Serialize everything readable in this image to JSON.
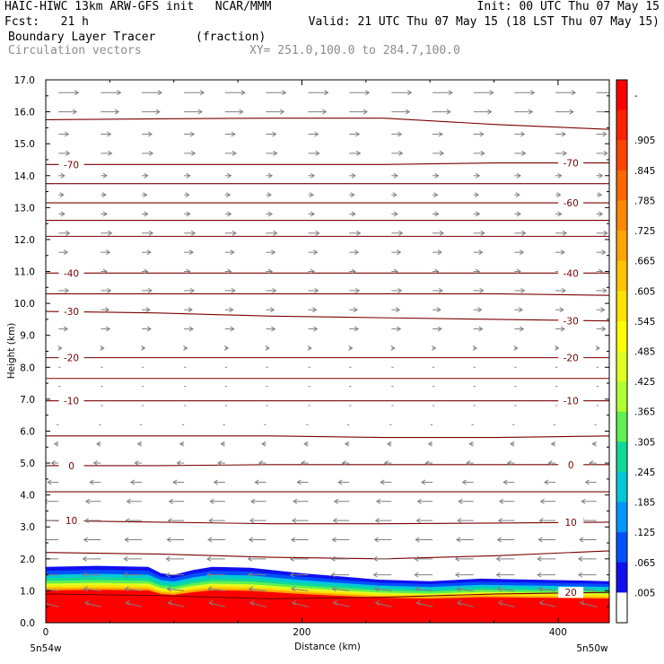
{
  "header": {
    "line1_left": "HAIC-HIWC 13km ARW-GFS init   NCAR/MMM",
    "line1_right": "Init: 00 UTC Thu 07 May 15",
    "line2_left": "Fcst:   21 h",
    "line2_right": "Valid: 21 UTC Thu 07 May 15 (18 LST Thu 07 May 15)",
    "field_name": "Boundary Layer Tracer",
    "field_units": "(fraction)",
    "vector_name": "Circulation vectors",
    "xsec_coords": "XY= 251.0,100.0 to 284.7,100.0"
  },
  "chart_data": {
    "type": "heatmap",
    "xlabel": "Distance (km)",
    "ylabel": "Height (km)",
    "xlim": [
      0,
      440
    ],
    "ylim": [
      0.0,
      17.0
    ],
    "x_ticks": [
      "0",
      "200",
      "400"
    ],
    "x_end_labels": [
      "5n54w",
      "5n50w"
    ],
    "y_ticks": [
      "0.0",
      "1.0",
      "2.0",
      "3.0",
      "4.0",
      "5.0",
      "6.0",
      "7.0",
      "8.0",
      "9.0",
      "10.0",
      "11.0",
      "12.0",
      "13.0",
      "14.0",
      "15.0",
      "16.0",
      "17.0"
    ],
    "colorbar": {
      "labels": [
        "-",
        ".905",
        ".845",
        ".785",
        ".725",
        ".665",
        ".605",
        ".545",
        ".485",
        ".425",
        ".365",
        ".305",
        ".245",
        ".185",
        ".125",
        ".065",
        ".005"
      ],
      "colors": [
        "#ff0000",
        "#ff2200",
        "#ff4400",
        "#ff6600",
        "#ff8800",
        "#ffa500",
        "#ffc400",
        "#ffe000",
        "#ffff00",
        "#e0ff20",
        "#b0ff30",
        "#60f050",
        "#10d898",
        "#00c8d8",
        "#0098ff",
        "#0050ff",
        "#1010f0",
        "#ffffff"
      ]
    },
    "tracer_top_km": [
      [
        0,
        1.75
      ],
      [
        40,
        1.78
      ],
      [
        80,
        1.75
      ],
      [
        90,
        1.55
      ],
      [
        100,
        1.5
      ],
      [
        115,
        1.65
      ],
      [
        130,
        1.75
      ],
      [
        160,
        1.72
      ],
      [
        200,
        1.55
      ],
      [
        260,
        1.35
      ],
      [
        300,
        1.3
      ],
      [
        340,
        1.38
      ],
      [
        380,
        1.35
      ],
      [
        420,
        1.32
      ],
      [
        440,
        1.3
      ]
    ],
    "contour_interval_c": 10,
    "contours": [
      {
        "value": "-70",
        "labels": [
          "-70",
          "-70"
        ],
        "y_km": [
          14.35,
          14.35,
          14.35,
          14.35,
          14.4,
          14.4
        ]
      },
      {
        "value": "-60",
        "labels": [
          "-60"
        ],
        "y_km": [
          13.15,
          13.15,
          13.15,
          13.15,
          13.15,
          13.15
        ]
      },
      {
        "value": "-40",
        "labels": [
          "-40",
          "-40"
        ],
        "y_km": [
          10.95,
          10.95,
          10.95,
          10.95,
          10.95,
          10.95
        ]
      },
      {
        "value": "-30",
        "labels": [
          "-30",
          "-30"
        ],
        "y_km": [
          9.75,
          9.7,
          9.6,
          9.55,
          9.5,
          9.45
        ]
      },
      {
        "value": "-20",
        "labels": [
          "-20",
          "-20"
        ],
        "y_km": [
          8.3,
          8.3,
          8.3,
          8.3,
          8.3,
          8.3
        ]
      },
      {
        "value": "-10",
        "labels": [
          "-10",
          "-10"
        ],
        "y_km": [
          6.95,
          6.95,
          6.95,
          6.95,
          6.95,
          6.95
        ]
      },
      {
        "value": "0",
        "labels": [
          "0",
          "0"
        ],
        "y_km": [
          4.92,
          4.92,
          4.95,
          4.95,
          4.95,
          4.95
        ]
      },
      {
        "value": "10",
        "labels": [
          "10",
          "10"
        ],
        "y_km": [
          3.2,
          3.15,
          3.1,
          3.1,
          3.12,
          3.15
        ]
      },
      {
        "value": "20",
        "labels": [
          "20"
        ],
        "y_km": [
          0.9,
          0.85,
          0.75,
          0.8,
          0.9,
          0.95
        ]
      }
    ],
    "isolines_km": [
      [
        15.75,
        15.78,
        15.8,
        15.8,
        15.6,
        15.45
      ],
      [
        13.75,
        13.75,
        13.75,
        13.75,
        13.75,
        13.75
      ],
      [
        12.6,
        12.6,
        12.6,
        12.6,
        12.6,
        12.6
      ],
      [
        12.1,
        12.1,
        12.1,
        12.1,
        12.1,
        12.1
      ],
      [
        10.3,
        10.3,
        10.3,
        10.3,
        10.3,
        10.25
      ],
      [
        7.65,
        7.65,
        7.65,
        7.65,
        7.65,
        7.65
      ],
      [
        5.85,
        5.85,
        5.85,
        5.8,
        5.8,
        5.85
      ],
      [
        4.1,
        4.1,
        4.1,
        4.1,
        4.1,
        4.1
      ],
      [
        2.2,
        2.15,
        2.05,
        2.0,
        2.1,
        2.25
      ]
    ],
    "vectors": {
      "x_km": [
        10,
        43,
        75,
        108,
        140,
        172,
        205,
        237,
        270,
        302,
        334,
        366,
        398,
        430
      ],
      "rows": [
        {
          "z_km": 16.6,
          "u": 1.0,
          "w": 0
        },
        {
          "z_km": 16.0,
          "u": 0.9,
          "w": 0
        },
        {
          "z_km": 15.3,
          "u": 0.5,
          "w": 0
        },
        {
          "z_km": 14.7,
          "u": 0.55,
          "w": 0
        },
        {
          "z_km": 14.0,
          "u": 0.3,
          "w": 0
        },
        {
          "z_km": 13.4,
          "u": 0.25,
          "w": 0
        },
        {
          "z_km": 12.8,
          "u": 0.3,
          "w": 0
        },
        {
          "z_km": 12.2,
          "u": 0.55,
          "w": 0
        },
        {
          "z_km": 11.6,
          "u": 0.45,
          "w": 0
        },
        {
          "z_km": 11.0,
          "u": 0.3,
          "w": 0
        },
        {
          "z_km": 10.4,
          "u": 0.5,
          "w": 0
        },
        {
          "z_km": 9.8,
          "u": 0.4,
          "w": 0
        },
        {
          "z_km": 9.2,
          "u": 0.45,
          "w": 0
        },
        {
          "z_km": 8.6,
          "u": 0.15,
          "w": 0
        },
        {
          "z_km": 8.0,
          "u": 0.1,
          "w": 0
        },
        {
          "z_km": 7.4,
          "u": 0.1,
          "w": 0
        },
        {
          "z_km": 6.8,
          "u": 0.1,
          "w": 0
        },
        {
          "z_km": 6.2,
          "u": -0.1,
          "w": 0
        },
        {
          "z_km": 5.6,
          "u": -0.2,
          "w": 0
        },
        {
          "z_km": 5.0,
          "u": -0.35,
          "w": 0
        },
        {
          "z_km": 4.4,
          "u": -0.55,
          "w": 0
        },
        {
          "z_km": 3.8,
          "u": -0.75,
          "w": 0
        },
        {
          "z_km": 3.2,
          "u": -0.8,
          "w": 0
        },
        {
          "z_km": 2.6,
          "u": -0.85,
          "w": 0
        },
        {
          "z_km": 2.0,
          "u": -0.9,
          "w": 0
        },
        {
          "z_km": 1.5,
          "u": -0.9,
          "w": 0
        },
        {
          "z_km": 1.0,
          "u": -0.85,
          "w": 0.1
        },
        {
          "z_km": 0.5,
          "u": -0.8,
          "w": 0.2
        }
      ]
    }
  }
}
